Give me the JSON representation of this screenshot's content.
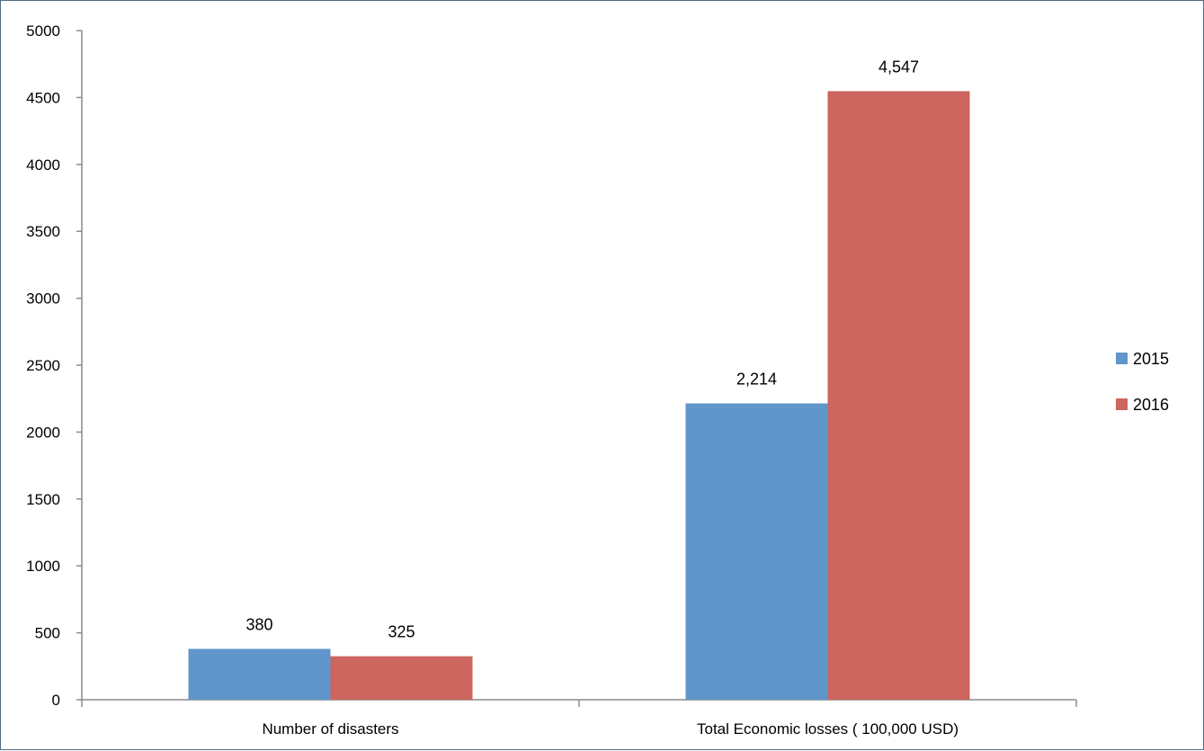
{
  "chart_data": {
    "type": "bar",
    "title": "",
    "xlabel": "",
    "ylabel": "",
    "ylim": [
      0,
      5000
    ],
    "yticks": [
      0,
      500,
      1000,
      1500,
      2000,
      2500,
      3000,
      3500,
      4000,
      4500,
      5000
    ],
    "categories": [
      "Number of disasters",
      "Total Economic losses ( 100,000 USD)"
    ],
    "series": [
      {
        "name": "2015",
        "color": "#6096c9",
        "values": [
          380,
          2214
        ],
        "labels": [
          "380",
          "2,214"
        ]
      },
      {
        "name": "2016",
        "color": "#cc665e",
        "values": [
          325,
          4547
        ],
        "labels": [
          "325",
          "4,547"
        ]
      }
    ],
    "grid": false,
    "legend": "right"
  }
}
